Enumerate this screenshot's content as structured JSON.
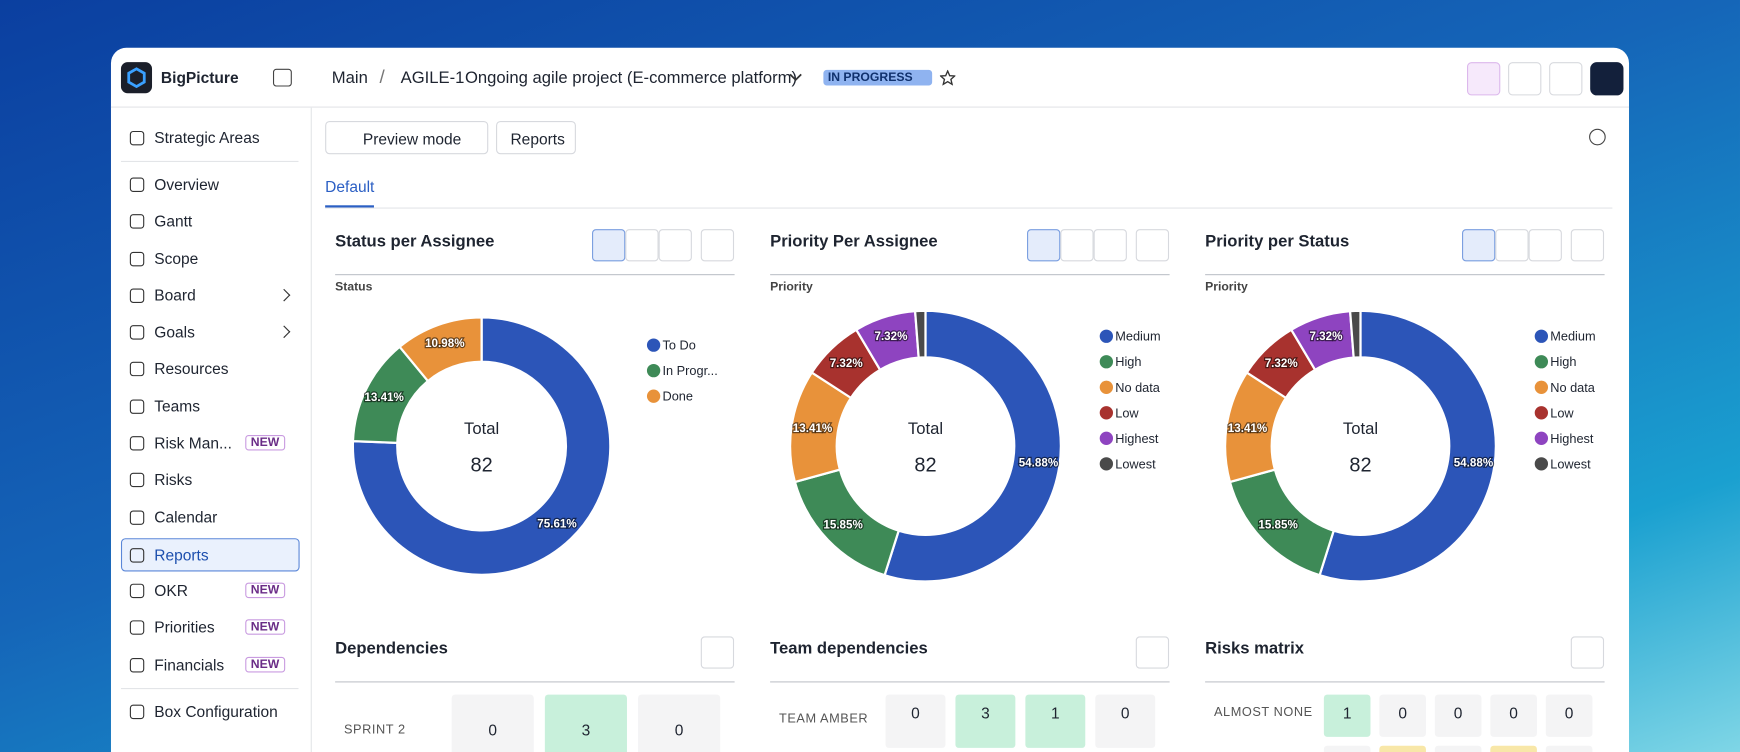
{
  "header": {
    "brand": "BigPicture",
    "breadcrumb": "Main",
    "separator": "/",
    "project_key": "AGILE-1",
    "project_name": "Ongoing agile project (E-commerce platform)",
    "status": "IN PROGRESS"
  },
  "sidebar": {
    "items": [
      {
        "label": "Strategic Areas"
      },
      {
        "label": "Overview"
      },
      {
        "label": "Gantt"
      },
      {
        "label": "Scope"
      },
      {
        "label": "Board"
      },
      {
        "label": "Goals"
      },
      {
        "label": "Resources"
      },
      {
        "label": "Teams"
      },
      {
        "label": "Risk Man...",
        "badge": "NEW"
      },
      {
        "label": "Risks"
      },
      {
        "label": "Calendar"
      },
      {
        "label": "Reports"
      },
      {
        "label": "OKR",
        "badge": "NEW"
      },
      {
        "label": "Priorities",
        "badge": "NEW"
      },
      {
        "label": "Financials",
        "badge": "NEW"
      },
      {
        "label": "Box Configuration"
      }
    ]
  },
  "toolbar": {
    "preview": "Preview mode",
    "reports": "Reports",
    "tab": "Default"
  },
  "widgets": [
    {
      "title": "Status per Assignee",
      "subtitle": "Status",
      "center_label": "Total",
      "total": 82,
      "segments": [
        {
          "name": "To Do",
          "color": "#2c55b8",
          "value": 75.61,
          "value_label": "75.61%"
        },
        {
          "name": "In Progr...",
          "color": "#3e8a57",
          "value": 13.41,
          "value_label": "13.41%"
        },
        {
          "name": "Done",
          "color": "#e8923a",
          "value": 10.98,
          "value_label": "10.98%"
        }
      ]
    },
    {
      "title": "Priority Per Assignee",
      "subtitle": "Priority",
      "center_label": "Total",
      "total": 82,
      "segments": [
        {
          "name": "Medium",
          "color": "#2c55b8",
          "value": 54.88,
          "value_label": "54.88%"
        },
        {
          "name": "High",
          "color": "#3e8a57",
          "value": 15.85,
          "value_label": "15.85%"
        },
        {
          "name": "No data",
          "color": "#e8923a",
          "value": 13.41,
          "value_label": "13.41%"
        },
        {
          "name": "Low",
          "color": "#a8322e",
          "value": 7.32,
          "value_label": "7.32%"
        },
        {
          "name": "Highest",
          "color": "#8e44c0",
          "value": 7.32,
          "value_label": "7.32%"
        },
        {
          "name": "Lowest",
          "color": "#4a4a4a",
          "value": 1.22
        }
      ]
    },
    {
      "title": "Priority per Status",
      "subtitle": "Priority",
      "center_label": "Total",
      "total": 82,
      "segments": [
        {
          "name": "Medium",
          "color": "#2c55b8",
          "value": 54.88,
          "value_label": "54.88%"
        },
        {
          "name": "High",
          "color": "#3e8a57",
          "value": 15.85,
          "value_label": "15.85%"
        },
        {
          "name": "No data",
          "color": "#e8923a",
          "value": 13.41,
          "value_label": "13.41%"
        },
        {
          "name": "Low",
          "color": "#a8322e",
          "value": 7.32,
          "value_label": "7.32%"
        },
        {
          "name": "Highest",
          "color": "#8e44c0",
          "value": 7.32,
          "value_label": "7.32%"
        },
        {
          "name": "Lowest",
          "color": "#4a4a4a",
          "value": 1.22
        }
      ]
    }
  ],
  "tables": [
    {
      "title": "Dependencies",
      "rows": [
        {
          "label": "SPRINT 2",
          "cells": [
            0,
            3,
            0
          ]
        }
      ]
    },
    {
      "title": "Team dependencies",
      "rows": [
        {
          "label": "TEAM AMBER",
          "cells": [
            0,
            3,
            1,
            0
          ]
        }
      ]
    },
    {
      "title": "Risks matrix",
      "rows": [
        {
          "label": "ALMOST NONE",
          "cells": [
            1,
            0,
            0,
            0,
            0
          ]
        }
      ]
    }
  ]
}
